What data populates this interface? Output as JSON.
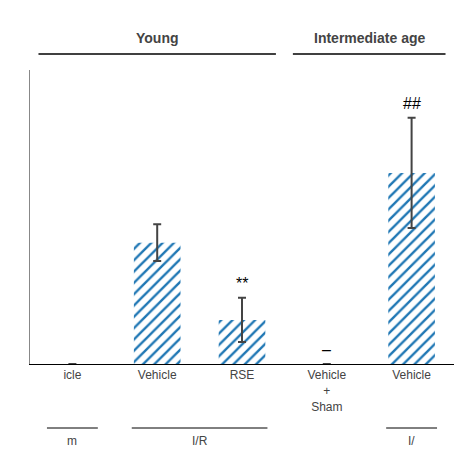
{
  "chart_data": {
    "type": "bar",
    "categories": [
      "icle",
      "Vehicle",
      "RSE",
      "Vehicle\n+\nSham",
      "Vehicle"
    ],
    "values": [
      0,
      33,
      12,
      0,
      52
    ],
    "errors": [
      0,
      5,
      6,
      0,
      15
    ],
    "ylim": [
      0,
      80
    ],
    "grid": false,
    "tick_labels": "x",
    "annotations": [
      {
        "text": "**",
        "category": 2
      },
      {
        "text": "##",
        "category": 4
      },
      {
        "text": "–",
        "category": 3
      }
    ],
    "group_labels": [
      {
        "text": "m",
        "span": [
          0,
          0
        ]
      },
      {
        "text": "I/R",
        "span": [
          1,
          2
        ]
      },
      {
        "text": "I/",
        "span": [
          4,
          4
        ]
      }
    ],
    "group_titles": [
      {
        "text": "Young",
        "span": [
          0,
          2
        ]
      },
      {
        "text": "Intermediate age",
        "span": [
          3,
          4
        ]
      }
    ]
  }
}
